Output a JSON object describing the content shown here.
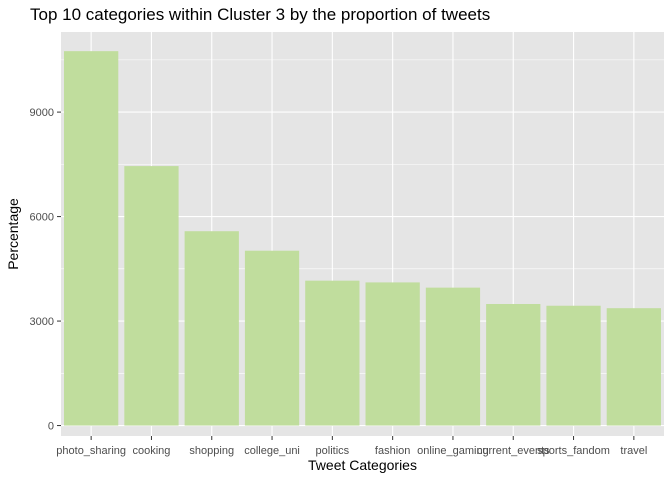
{
  "chart_data": {
    "type": "bar",
    "title": "Top 10 categories within Cluster 3 by the proportion of tweets",
    "xlabel": "Tweet Categories",
    "ylabel": "Percentage",
    "categories": [
      "photo_sharing",
      "cooking",
      "shopping",
      "college_uni",
      "politics",
      "fashion",
      "online_gaming",
      "current_events",
      "sports_fandom",
      "travel"
    ],
    "values": [
      10750,
      7450,
      5580,
      5020,
      4160,
      4110,
      3960,
      3490,
      3440,
      3370
    ],
    "ylim": [
      -300,
      11300
    ],
    "yticks": [
      0,
      3000,
      6000,
      9000
    ],
    "ytick_labels": [
      "0",
      "3000",
      "6000",
      "9000"
    ],
    "grid": true,
    "bar_color": "#c0dd9d",
    "panel_background": "#e5e5e5",
    "gridline_color": "#ffffff"
  }
}
